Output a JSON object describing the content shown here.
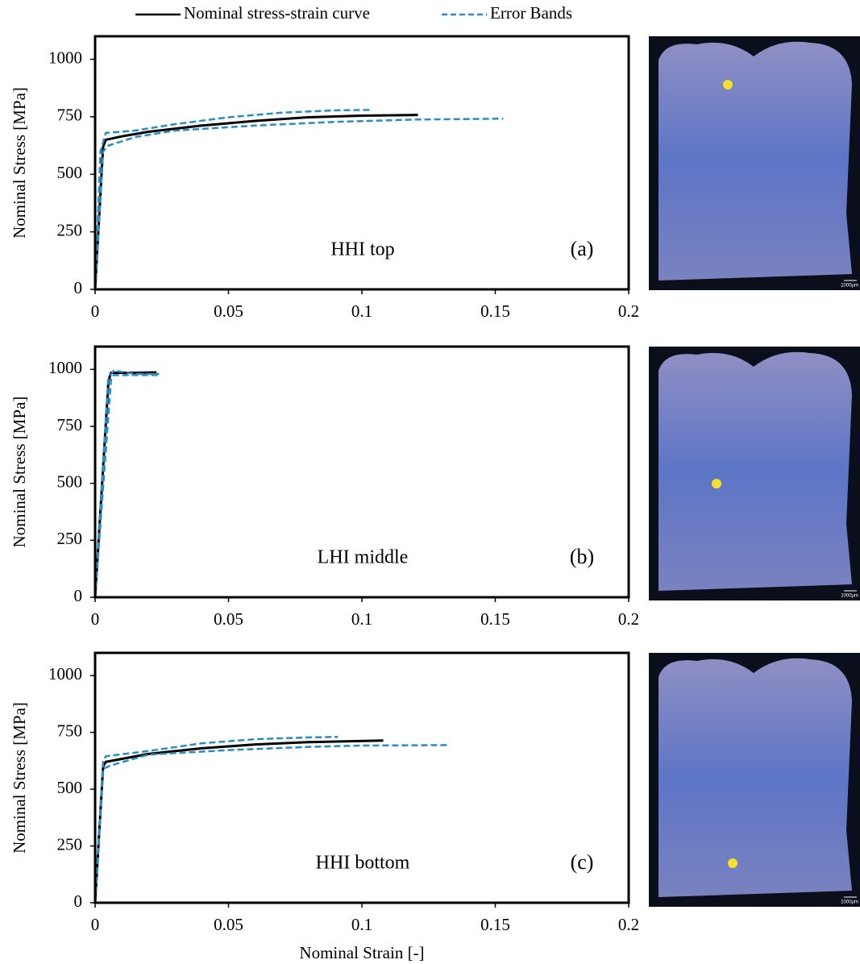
{
  "legend": [
    {
      "name": "Nominal stress-strain curve",
      "color": "#000000",
      "style": "solid"
    },
    {
      "name": "Error Bands",
      "color": "#2a8cc4",
      "style": "dashed"
    }
  ],
  "chart_data": [
    {
      "type": "line",
      "ylabel": "Nominal Stress [MPa]",
      "annotation": "HHI top",
      "panel": "(a)",
      "xlim": [
        0,
        0.2
      ],
      "ylim": [
        0,
        1100
      ],
      "xticks": [
        0,
        0.05,
        0.1,
        0.15,
        0.2
      ],
      "yticks": [
        0,
        250,
        500,
        750,
        1000
      ],
      "image": {
        "scale_label": "1000μm"
      },
      "series": [
        {
          "color": "#000000",
          "style": "solid",
          "x": [
            0,
            0.003,
            0.004,
            0.01,
            0.02,
            0.04,
            0.06,
            0.08,
            0.1,
            0.121
          ],
          "values": [
            0,
            620,
            650,
            665,
            685,
            712,
            732,
            748,
            755,
            758
          ]
        },
        {
          "color": "#2a8cc4",
          "style": "dashed",
          "x": [
            0,
            0.002,
            0.004,
            0.015,
            0.03,
            0.05,
            0.07,
            0.09,
            0.103
          ],
          "values": [
            0,
            600,
            680,
            690,
            718,
            748,
            768,
            778,
            780
          ]
        },
        {
          "color": "#2a8cc4",
          "style": "dashed",
          "x": [
            0,
            0.003,
            0.005,
            0.015,
            0.03,
            0.06,
            0.09,
            0.12,
            0.153
          ],
          "values": [
            0,
            600,
            625,
            662,
            690,
            712,
            728,
            738,
            742
          ]
        }
      ]
    },
    {
      "type": "line",
      "ylabel": "Nominal Stress [MPa]",
      "annotation": "LHI middle",
      "panel": "(b)",
      "xlim": [
        0,
        0.2
      ],
      "ylim": [
        0,
        1100
      ],
      "xticks": [
        0,
        0.05,
        0.1,
        0.15,
        0.2
      ],
      "yticks": [
        0,
        250,
        500,
        750,
        1000
      ],
      "image": {
        "scale_label": "1000μm"
      },
      "series": [
        {
          "color": "#000000",
          "style": "solid",
          "x": [
            0,
            0.005,
            0.006,
            0.015,
            0.023
          ],
          "values": [
            0,
            950,
            985,
            985,
            987
          ]
        },
        {
          "color": "#2a8cc4",
          "style": "dashed",
          "x": [
            0,
            0.005,
            0.007,
            0.015,
            0.024
          ],
          "values": [
            0,
            960,
            995,
            980,
            980
          ]
        },
        {
          "color": "#2a8cc4",
          "style": "dashed",
          "x": [
            0,
            0.006,
            0.007,
            0.024
          ],
          "values": [
            0,
            960,
            975,
            975
          ]
        }
      ]
    },
    {
      "type": "line",
      "ylabel": "Nominal Stress [MPa]",
      "xlabel": "Nominal Strain [-]",
      "annotation": "HHI bottom",
      "panel": "(c)",
      "xlim": [
        0,
        0.2
      ],
      "ylim": [
        0,
        1100
      ],
      "xticks": [
        0,
        0.05,
        0.1,
        0.15,
        0.2
      ],
      "yticks": [
        0,
        250,
        500,
        750,
        1000
      ],
      "image": {
        "scale_label": "1000μm"
      },
      "series": [
        {
          "color": "#000000",
          "style": "solid",
          "x": [
            0,
            0.003,
            0.004,
            0.02,
            0.04,
            0.06,
            0.08,
            0.108
          ],
          "values": [
            0,
            600,
            620,
            655,
            680,
            697,
            707,
            714
          ]
        },
        {
          "color": "#2a8cc4",
          "style": "dashed",
          "x": [
            0,
            0.003,
            0.004,
            0.02,
            0.04,
            0.06,
            0.08,
            0.091
          ],
          "values": [
            0,
            620,
            645,
            668,
            702,
            720,
            728,
            730
          ]
        },
        {
          "color": "#2a8cc4",
          "style": "dashed",
          "x": [
            0,
            0.003,
            0.006,
            0.02,
            0.05,
            0.08,
            0.1,
            0.132
          ],
          "values": [
            0,
            590,
            605,
            652,
            672,
            686,
            692,
            694
          ]
        }
      ]
    }
  ]
}
